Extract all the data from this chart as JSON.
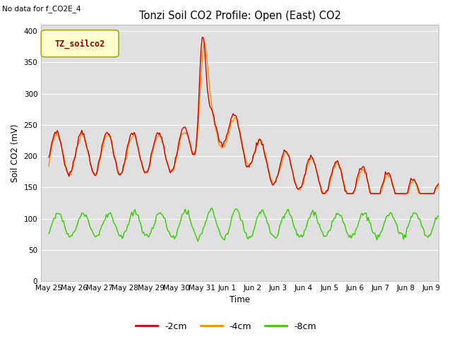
{
  "title": "Tonzi Soil CO2 Profile: Open (East) CO2",
  "subtitle": "No data for f_CO2E_4",
  "ylabel": "Soil CO2 (mV)",
  "xlabel": "Time",
  "legend_label": "TZ_soilco2",
  "line_labels": [
    "-2cm",
    "-4cm",
    "-8cm"
  ],
  "line_colors": [
    "#cc0000",
    "#ff8c00",
    "#33cc00"
  ],
  "ylim": [
    0,
    410
  ],
  "yticks": [
    0,
    50,
    100,
    150,
    200,
    250,
    300,
    350,
    400
  ],
  "bg_color": "#e0e0e0",
  "legend_box_color": "#ffffcc",
  "legend_text_color": "#880000",
  "figsize": [
    6.4,
    4.8
  ],
  "dpi": 100
}
